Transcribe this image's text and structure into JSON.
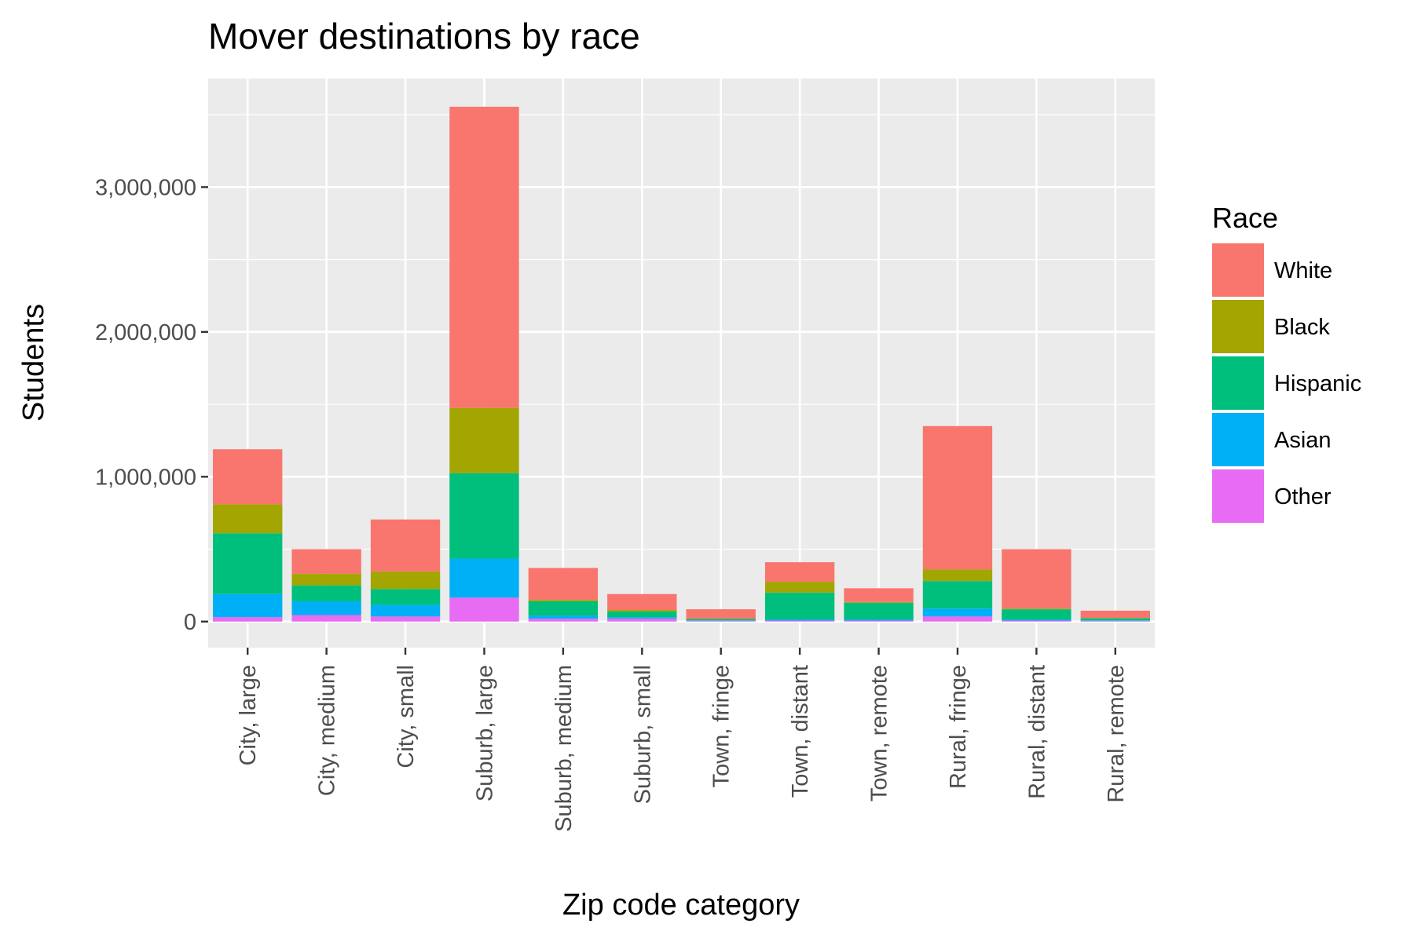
{
  "chart_data": {
    "type": "bar",
    "stacked": true,
    "title": "Mover destinations by race",
    "xlabel": "Zip code category",
    "ylabel": "Students",
    "ylim": [
      -180000,
      3750000
    ],
    "yticks": [
      0,
      1000000,
      2000000,
      3000000
    ],
    "ytick_labels": [
      "0",
      "1,000,000",
      "2,000,000",
      "3,000,000"
    ],
    "grid": true,
    "legend": {
      "title": "Race",
      "position": "right"
    },
    "categories": [
      "City, large",
      "City, medium",
      "City, small",
      "Suburb, large",
      "Suburb, medium",
      "Suburb, small",
      "Town, fringe",
      "Town, distant",
      "Town, remote",
      "Rural, fringe",
      "Rural, distant",
      "Rural, remote"
    ],
    "series": [
      {
        "name": "White",
        "color": "#F8766D",
        "values": [
          380000,
          170000,
          360000,
          2080000,
          220000,
          110000,
          65000,
          135000,
          95000,
          990000,
          410000,
          50000
        ]
      },
      {
        "name": "Black",
        "color": "#A3A500",
        "values": [
          200000,
          80000,
          120000,
          450000,
          10000,
          10000,
          2000,
          75000,
          5000,
          80000,
          5000,
          2000
        ]
      },
      {
        "name": "Hispanic",
        "color": "#00BF7D",
        "values": [
          420000,
          110000,
          110000,
          590000,
          100000,
          40000,
          10000,
          185000,
          115000,
          190000,
          70000,
          15000
        ]
      },
      {
        "name": "Asian",
        "color": "#00B0F6",
        "values": [
          160000,
          95000,
          80000,
          270000,
          20000,
          10000,
          3000,
          8000,
          8000,
          55000,
          8000,
          3000
        ]
      },
      {
        "name": "Other",
        "color": "#E76BF3",
        "values": [
          30000,
          45000,
          35000,
          165000,
          20000,
          20000,
          5000,
          7000,
          7000,
          35000,
          7000,
          5000
        ]
      }
    ]
  }
}
